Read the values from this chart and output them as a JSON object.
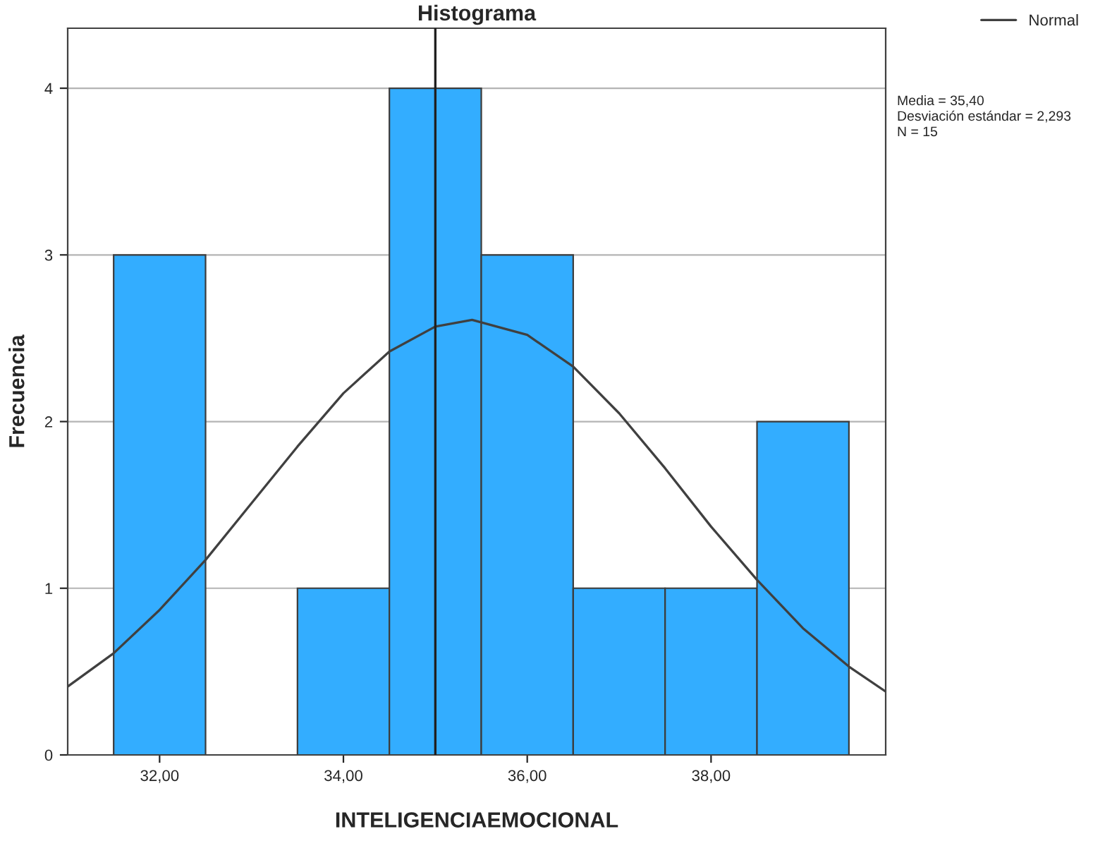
{
  "chart_data": {
    "type": "histogram",
    "title": "Histograma",
    "xlabel": "INTELIGENCIAEMOCIONAL",
    "ylabel": "Frecuencia",
    "bins": [
      31.5,
      32.5,
      33.5,
      34.5,
      35.5,
      36.5,
      37.5,
      38.5,
      39.5
    ],
    "values": [
      3,
      0,
      1,
      4,
      3,
      1,
      1,
      2
    ],
    "color": "#33adff",
    "series": [
      {
        "type": "line",
        "name": "Normal",
        "color": "#404040",
        "x": [
          31,
          31.5,
          32,
          32.5,
          33,
          33.5,
          34,
          34.5,
          35,
          35.4,
          36,
          36.5,
          37,
          37.5,
          38,
          38.5,
          39,
          39.5,
          39.9
        ],
        "values": [
          0.41,
          0.61,
          0.87,
          1.17,
          1.51,
          1.85,
          2.17,
          2.42,
          2.57,
          2.61,
          2.52,
          2.33,
          2.05,
          1.72,
          1.37,
          1.05,
          0.76,
          0.53,
          0.38
        ]
      }
    ],
    "ref_lines": [
      {
        "axis": "x",
        "value": 35,
        "color": "#202020"
      }
    ],
    "xlim": [
      31,
      39.9
    ],
    "xticks": [
      {
        "value": 32,
        "label": "32,00"
      },
      {
        "value": 34,
        "label": "34,00"
      },
      {
        "value": 36,
        "label": "36,00"
      },
      {
        "value": 38,
        "label": "38,00"
      }
    ],
    "ylim": [
      0,
      4.36
    ],
    "yticks": [
      0,
      1,
      2,
      3,
      4
    ],
    "grid": "y",
    "legend": "top right",
    "annotations": [
      "Media = 35,40",
      "Desviación estándar = 2,293",
      "N = 15"
    ]
  }
}
